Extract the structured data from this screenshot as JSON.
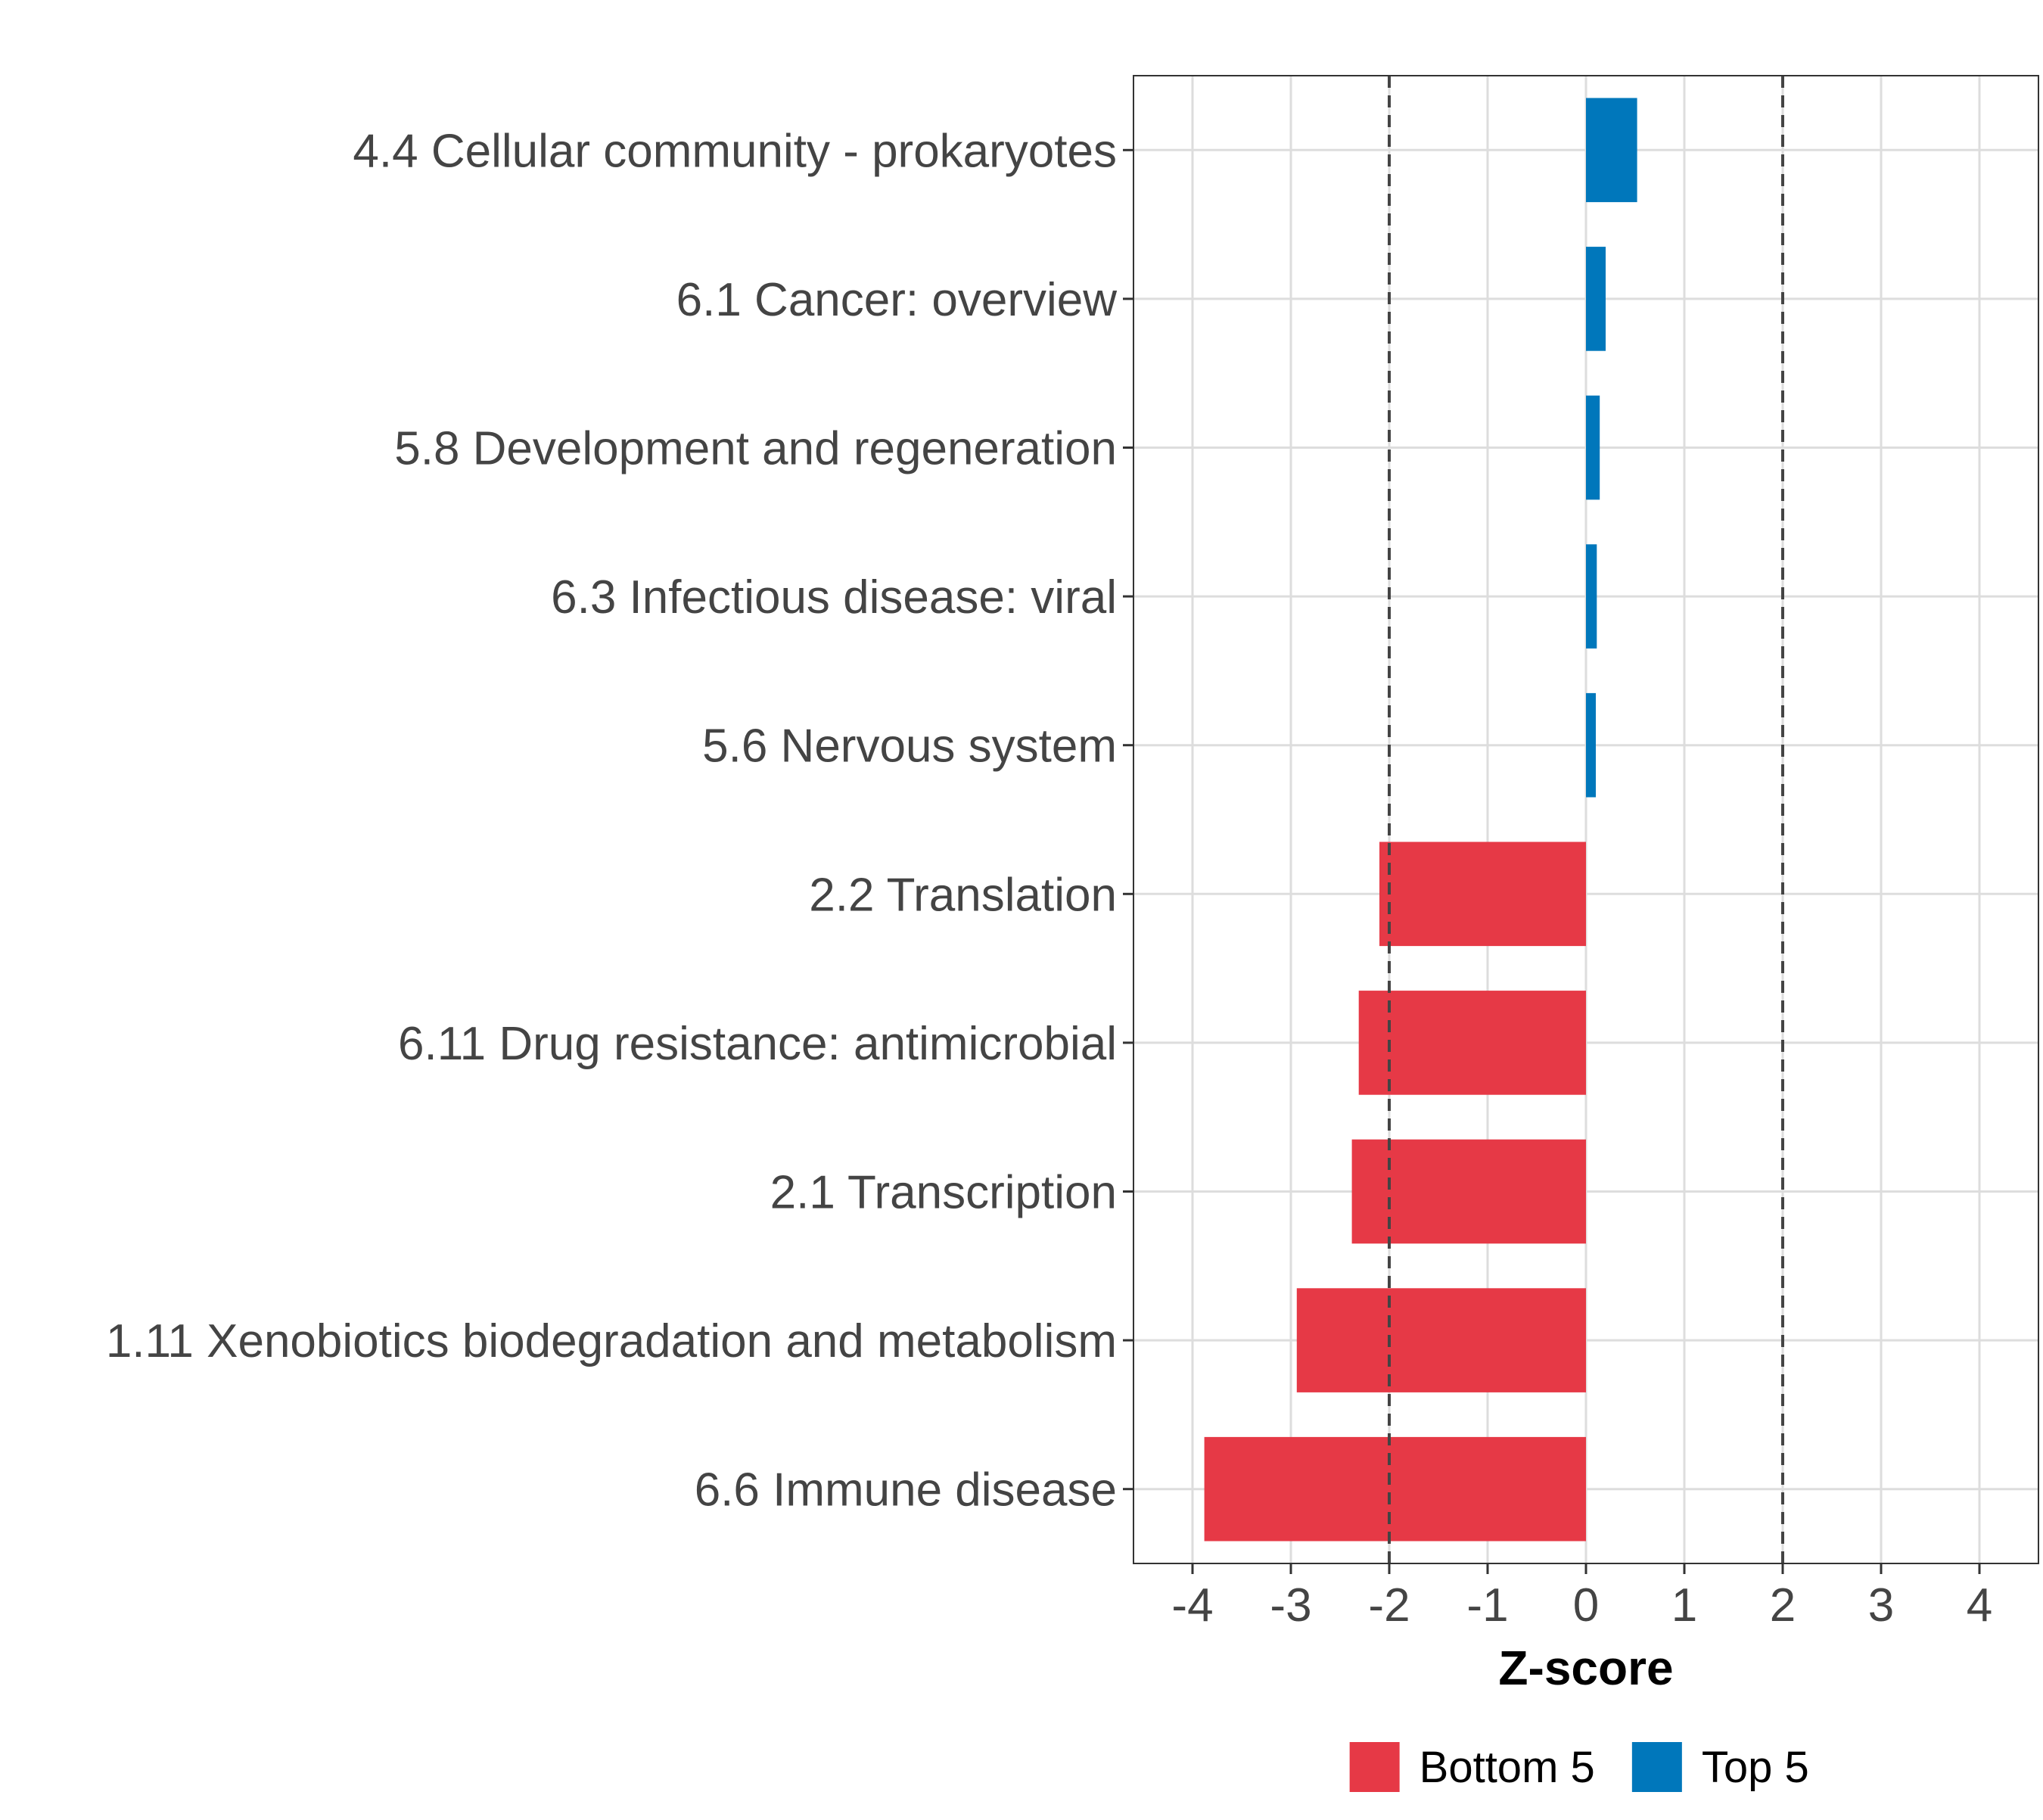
{
  "chart_data": {
    "type": "bar",
    "orientation": "horizontal",
    "categories": [
      "4.4 Cellular community - prokaryotes",
      "6.1 Cancer: overview",
      "5.8 Development and regeneration",
      "6.3 Infectious disease: viral",
      "5.6 Nervous system",
      "2.2 Translation",
      "6.11 Drug resistance: antimicrobial",
      "2.1 Transcription",
      "1.11 Xenobiotics biodegradation and metabolism",
      "6.6 Immune disease"
    ],
    "values": [
      0.52,
      0.2,
      0.14,
      0.11,
      0.1,
      -2.1,
      -2.31,
      -2.38,
      -2.94,
      -3.88
    ],
    "groups": [
      "Top 5",
      "Top 5",
      "Top 5",
      "Top 5",
      "Top 5",
      "Bottom 5",
      "Bottom 5",
      "Bottom 5",
      "Bottom 5",
      "Bottom 5"
    ],
    "xlabel": "Z-score",
    "ylabel": "",
    "xlim": [
      -4.6,
      4.6
    ],
    "xticks": [
      -4,
      -3,
      -2,
      -1,
      0,
      1,
      2,
      3,
      4
    ],
    "xtick_labels": [
      "-4",
      "-3",
      "-2",
      "-1",
      "0",
      "1",
      "2",
      "3",
      "4"
    ],
    "reference_lines": [
      -2,
      2
    ],
    "grid": true,
    "legend": {
      "position": "bottom",
      "entries": [
        {
          "label": "Bottom 5",
          "color": "#E63946"
        },
        {
          "label": "Top 5",
          "color": "#0077BB"
        }
      ]
    },
    "colors": {
      "Bottom 5": "#E63946",
      "Top 5": "#0077BB"
    }
  }
}
